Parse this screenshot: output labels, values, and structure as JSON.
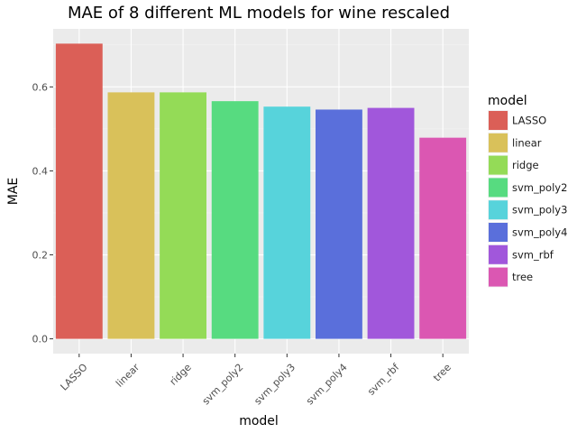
{
  "chart_data": {
    "type": "bar",
    "title": "MAE of 8 different ML models for wine rescaled",
    "xlabel": "model",
    "ylabel": "MAE",
    "categories": [
      "LASSO",
      "linear",
      "ridge",
      "svm_poly2",
      "svm_poly3",
      "svm_poly4",
      "svm_rbf",
      "tree"
    ],
    "values": [
      0.703,
      0.587,
      0.587,
      0.566,
      0.553,
      0.546,
      0.55,
      0.479
    ],
    "colors": [
      "#DB5F57",
      "#D9C15A",
      "#94DB57",
      "#57DB80",
      "#57D3DB",
      "#5A6FDB",
      "#A157DB",
      "#DB57B2"
    ],
    "ylim": [
      -0.0352,
      0.7382
    ],
    "yticks": [
      0.0,
      0.2,
      0.4,
      0.6
    ],
    "ytick_labels": [
      "0.0",
      "0.2",
      "0.4",
      "0.6"
    ],
    "legend": {
      "title": "model",
      "position": "right"
    },
    "grid": true,
    "panel_background": "#EBEBEB"
  }
}
